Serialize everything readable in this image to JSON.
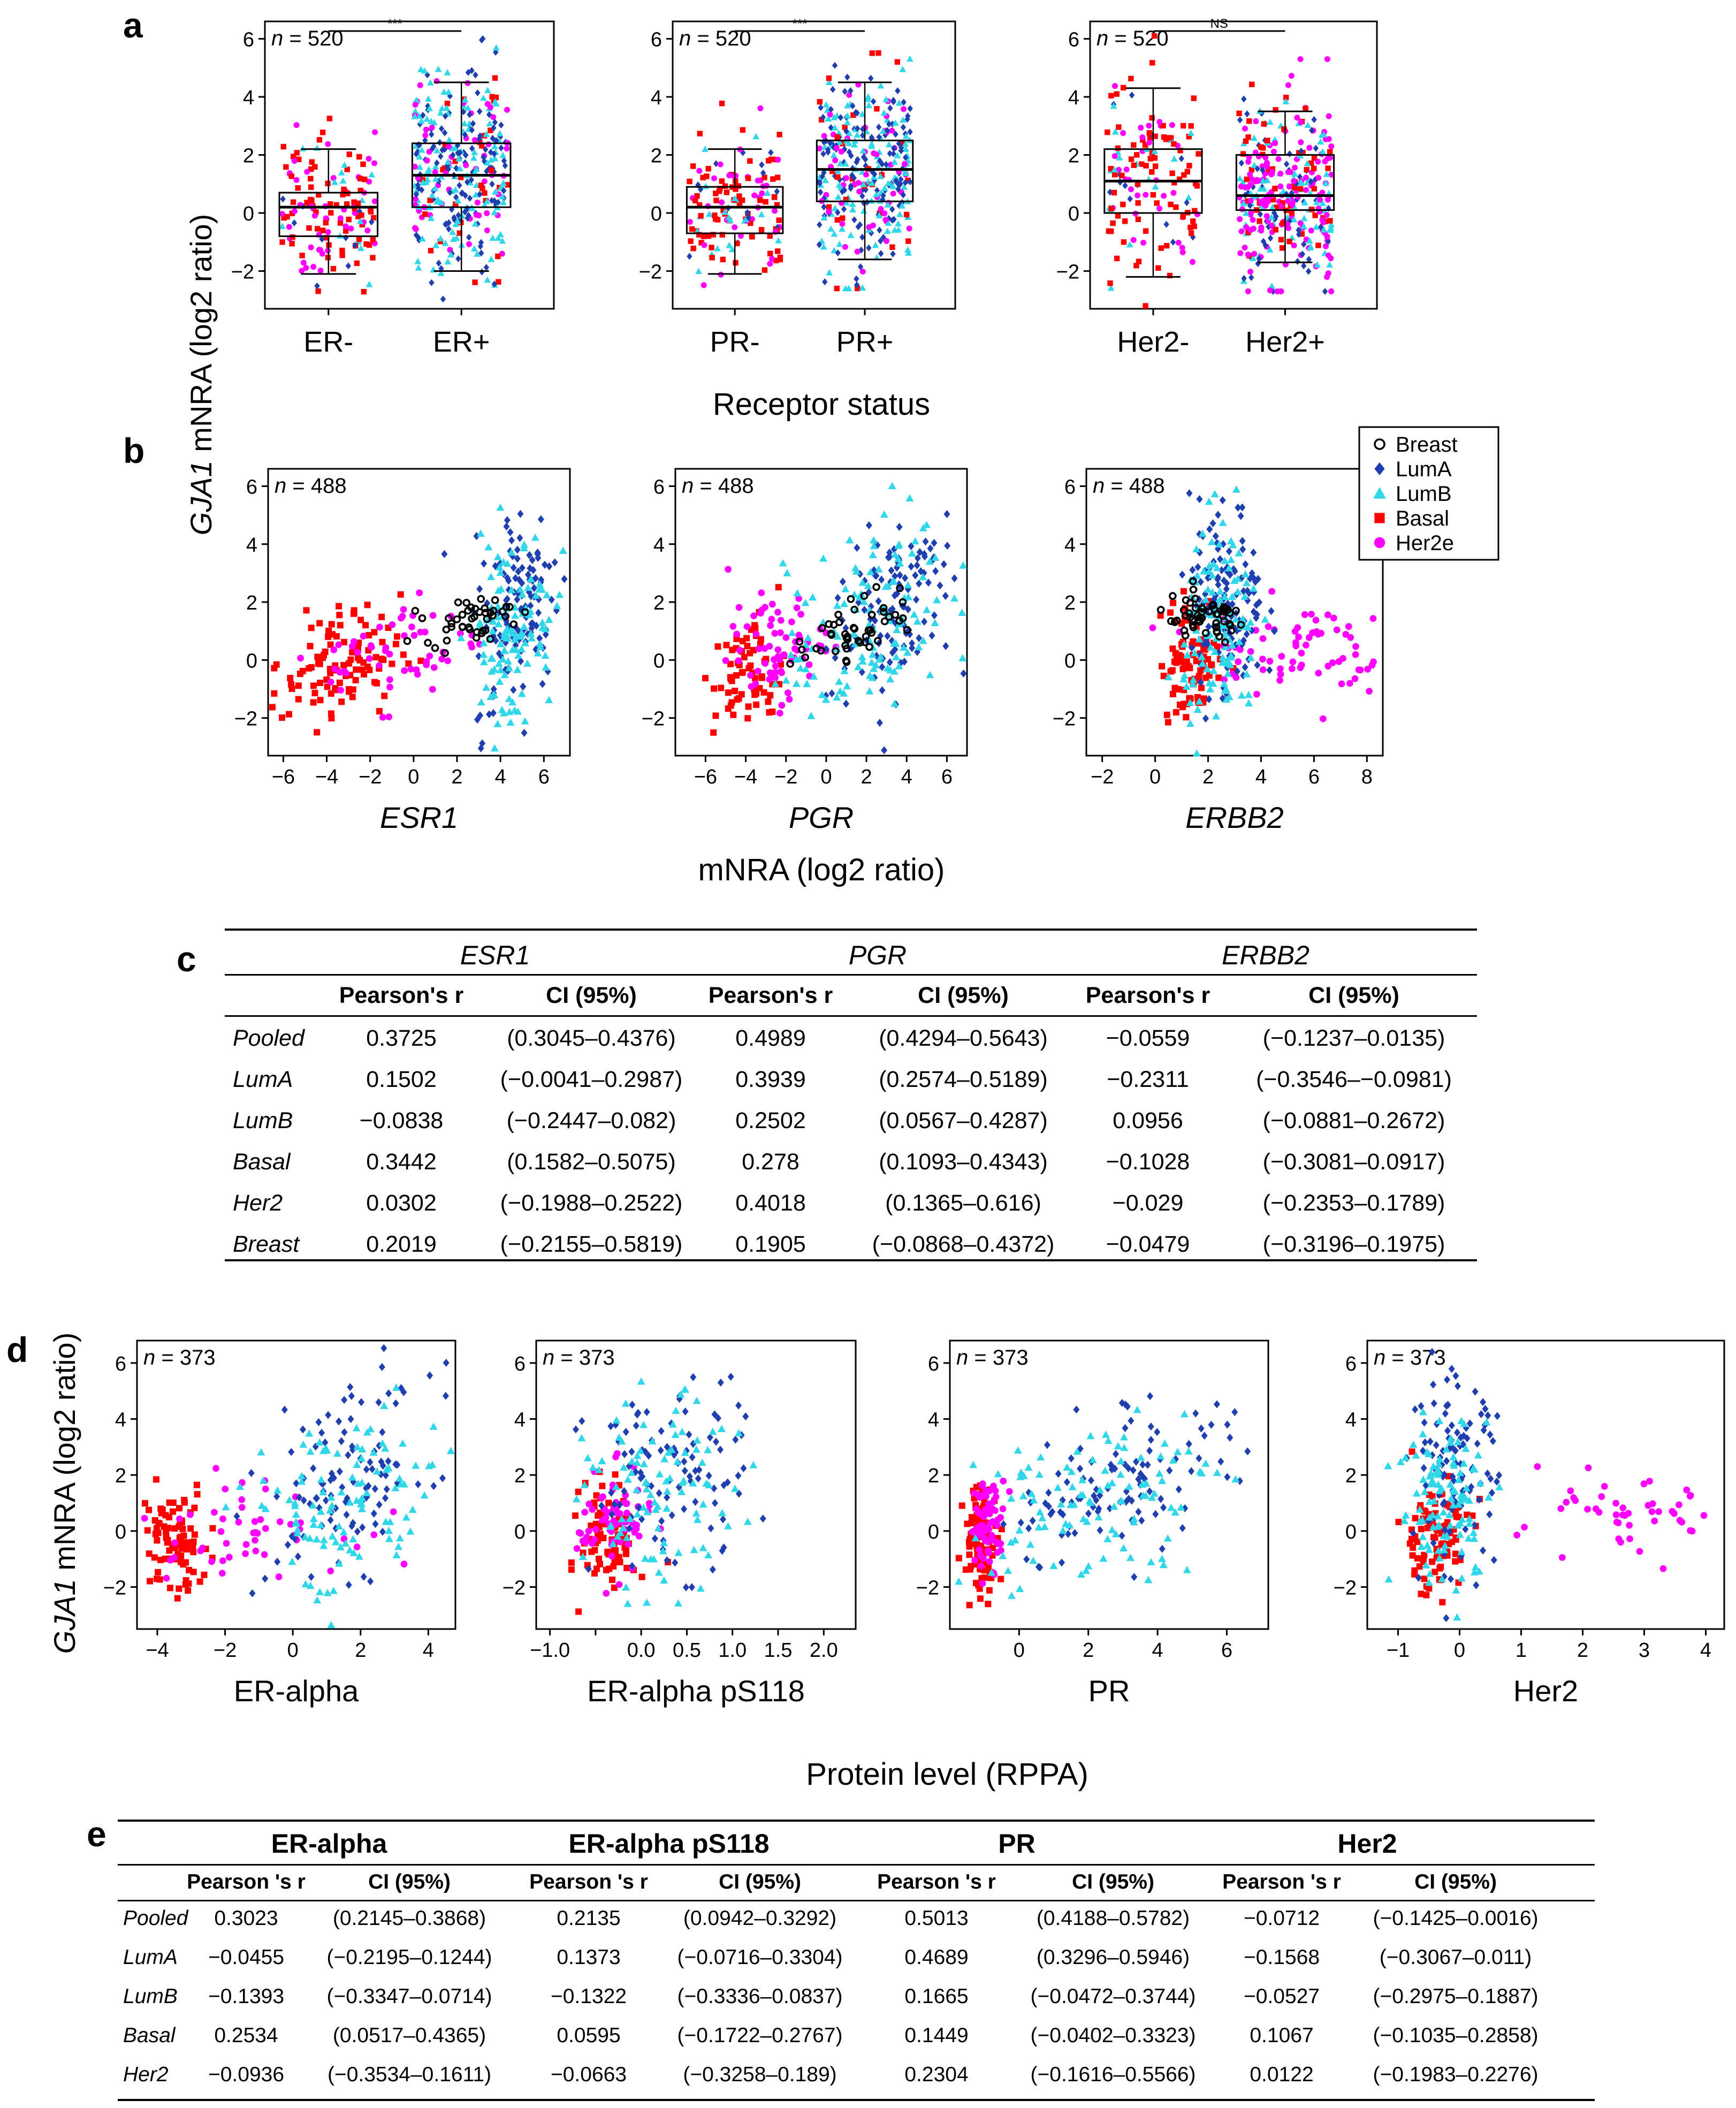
{
  "panel_labels": {
    "a": "a",
    "b": "b",
    "c": "c",
    "d": "d",
    "e": "e"
  },
  "colors": {
    "breast": "#000000",
    "luma": "#1f3fb0",
    "lumb": "#2fd7e8",
    "basal": "#ff0000",
    "her2e": "#ff00ff"
  },
  "axis_titles": {
    "y_gene": "GJA1",
    "y_rest": " mNRA (log2 ratio)",
    "a_x": "Receptor status",
    "b_x": "mNRA (log2 ratio)",
    "d_x": "Protein level (RPPA)"
  },
  "legend": [
    {
      "label": "Breast",
      "shape": "open-circle",
      "color": "#000000"
    },
    {
      "label": "LumA",
      "shape": "diamond",
      "color": "#1f3fb0"
    },
    {
      "label": "LumB",
      "shape": "triangle",
      "color": "#2fd7e8"
    },
    {
      "label": "Basal",
      "shape": "square",
      "color": "#ff0000"
    },
    {
      "label": "Her2e",
      "shape": "circle",
      "color": "#ff00ff"
    }
  ],
  "n_labels": {
    "a": "n = 520",
    "b": "n = 488",
    "d": "n = 373"
  },
  "chart_data": [
    {
      "id": "a1",
      "type": "box",
      "title": "",
      "ylabel": "GJA1 mNRA (log2 ratio)",
      "ylim": [
        -3.3,
        6.6
      ],
      "yticks": [
        -2,
        0,
        2,
        4,
        6
      ],
      "categories": [
        "ER-",
        "ER+"
      ],
      "significance": "***",
      "n": "n = 520",
      "boxes": [
        {
          "q1": -0.8,
          "median": 0.2,
          "q3": 0.7,
          "low": -2.1,
          "high": 2.2
        },
        {
          "q1": 0.2,
          "median": 1.3,
          "q3": 2.4,
          "low": -2.0,
          "high": 4.5
        }
      ]
    },
    {
      "id": "a2",
      "type": "box",
      "title": "",
      "ylabel": "GJA1 mNRA (log2 ratio)",
      "ylim": [
        -3.3,
        6.6
      ],
      "yticks": [
        -2,
        0,
        2,
        4,
        6
      ],
      "categories": [
        "PR-",
        "PR+"
      ],
      "significance": "***",
      "n": "n = 520",
      "boxes": [
        {
          "q1": -0.7,
          "median": 0.2,
          "q3": 0.9,
          "low": -2.1,
          "high": 2.2
        },
        {
          "q1": 0.4,
          "median": 1.5,
          "q3": 2.5,
          "low": -1.6,
          "high": 4.5
        }
      ]
    },
    {
      "id": "a3",
      "type": "box",
      "title": "",
      "ylabel": "GJA1 mNRA (log2 ratio)",
      "ylim": [
        -3.3,
        6.6
      ],
      "yticks": [
        -2,
        0,
        2,
        4,
        6
      ],
      "categories": [
        "Her2-",
        "Her2+"
      ],
      "significance": "NS",
      "n": "n = 520",
      "boxes": [
        {
          "q1": 0.0,
          "median": 1.1,
          "q3": 2.2,
          "low": -2.2,
          "high": 4.3
        },
        {
          "q1": 0.1,
          "median": 0.6,
          "q3": 2.0,
          "low": -1.7,
          "high": 3.5
        }
      ]
    },
    {
      "id": "b1",
      "type": "scatter",
      "xlabel": "ESR1",
      "ylabel": "GJA1 mNRA (log2 ratio)",
      "xlim": [
        -6.7,
        7.2
      ],
      "ylim": [
        -3.3,
        6.6
      ],
      "xticks": [
        -6,
        -4,
        -2,
        0,
        2,
        4,
        6
      ],
      "yticks": [
        -2,
        0,
        2,
        4,
        6
      ],
      "n": "n = 488"
    },
    {
      "id": "b2",
      "type": "scatter",
      "xlabel": "PGR",
      "ylabel": "GJA1 mNRA (log2 ratio)",
      "xlim": [
        -7.5,
        7.0
      ],
      "ylim": [
        -3.3,
        6.6
      ],
      "xticks": [
        -6,
        -4,
        -2,
        0,
        2,
        4,
        6
      ],
      "yticks": [
        -2,
        0,
        2,
        4,
        6
      ],
      "n": "n = 488"
    },
    {
      "id": "b3",
      "type": "scatter",
      "xlabel": "ERBB2",
      "ylabel": "GJA1 mNRA (log2 ratio)",
      "xlim": [
        -2.6,
        8.6
      ],
      "ylim": [
        -3.3,
        6.6
      ],
      "xticks": [
        -2,
        0,
        2,
        4,
        6,
        8
      ],
      "yticks": [
        -2,
        0,
        2,
        4,
        6
      ],
      "n": "n = 488"
    },
    {
      "id": "d1",
      "type": "scatter",
      "xlabel": "ER-alpha",
      "ylabel": "GJA1 mNRA (log2 ratio)",
      "xlim": [
        -4.6,
        4.8
      ],
      "ylim": [
        -3.5,
        6.8
      ],
      "xticks": [
        -4,
        -2,
        0,
        2,
        4
      ],
      "yticks": [
        -2,
        0,
        2,
        4,
        6
      ],
      "n": "n = 373"
    },
    {
      "id": "d2",
      "type": "scatter",
      "xlabel": "ER-alpha pS118",
      "ylabel": "GJA1 mNRA (log2 ratio)",
      "xlim": [
        -1.15,
        2.35
      ],
      "ylim": [
        -3.5,
        6.8
      ],
      "xticks": [
        -1.0,
        -0.5,
        0.0,
        0.5,
        1.0,
        1.5,
        2.0
      ],
      "xticklabels": [
        "-1.0",
        "",
        "0.0",
        "0.5",
        "1.0",
        "1.5",
        "2.0"
      ],
      "yticks": [
        -2,
        0,
        2,
        4,
        6
      ],
      "n": "n = 373"
    },
    {
      "id": "d3",
      "type": "scatter",
      "xlabel": "PR",
      "ylabel": "GJA1 mNRA (log2 ratio)",
      "xlim": [
        -2.0,
        7.2
      ],
      "ylim": [
        -3.5,
        6.8
      ],
      "xticks": [
        0,
        2,
        4,
        6
      ],
      "yticks": [
        -2,
        0,
        2,
        4,
        6
      ],
      "n": "n = 373"
    },
    {
      "id": "d4",
      "type": "scatter",
      "xlabel": "Her2",
      "ylabel": "GJA1 mNRA (log2 ratio)",
      "xlim": [
        -1.5,
        4.3
      ],
      "ylim": [
        -3.5,
        6.8
      ],
      "xticks": [
        -1,
        0,
        1,
        2,
        3,
        4
      ],
      "yticks": [
        -2,
        0,
        2,
        4,
        6
      ],
      "n": "n = 373"
    }
  ],
  "table_c": {
    "groups": [
      "ESR1",
      "PGR",
      "ERBB2"
    ],
    "columns": [
      "Pearson's r",
      "CI (95%)",
      "Pearson's r",
      "CI (95%)",
      "Pearson's r",
      "CI (95%)"
    ],
    "rows": [
      {
        "label": "Pooled",
        "cells": [
          "0.3725",
          "(0.3045–0.4376)",
          "0.4989",
          "(0.4294–0.5643)",
          "−0.0559",
          "(−0.1237–0.0135)"
        ]
      },
      {
        "label": "LumA",
        "cells": [
          "0.1502",
          "(−0.0041–0.2987)",
          "0.3939",
          "(0.2574–0.5189)",
          "−0.2311",
          "(−0.3546–−0.0981)"
        ]
      },
      {
        "label": "LumB",
        "cells": [
          "−0.0838",
          "(−0.2447–0.082)",
          "0.2502",
          "(0.0567–0.4287)",
          "0.0956",
          "(−0.0881–0.2672)"
        ]
      },
      {
        "label": "Basal",
        "cells": [
          "0.3442",
          "(0.1582–0.5075)",
          "0.278",
          "(0.1093–0.4343)",
          "−0.1028",
          "(−0.3081–0.0917)"
        ]
      },
      {
        "label": "Her2",
        "cells": [
          "0.0302",
          "(−0.1988–0.2522)",
          "0.4018",
          "(0.1365–0.616)",
          "−0.029",
          "(−0.2353–0.1789)"
        ]
      },
      {
        "label": "Breast",
        "cells": [
          "0.2019",
          "(−0.2155–0.5819)",
          "0.1905",
          "(−0.0868–0.4372)",
          "−0.0479",
          "(−0.3196–0.1975)"
        ]
      }
    ]
  },
  "table_e": {
    "groups": [
      "ER-alpha",
      "ER-alpha pS118",
      "PR",
      "Her2"
    ],
    "columns": [
      "Pearson 's r",
      "CI (95%)",
      "Pearson 's r",
      "CI (95%)",
      "Pearson 's r",
      "CI (95%)",
      "Pearson 's r",
      "CI (95%)"
    ],
    "rows": [
      {
        "label": "Pooled",
        "cells": [
          "0.3023",
          "(0.2145–0.3868)",
          "0.2135",
          "(0.0942–0.3292)",
          "0.5013",
          "(0.4188–0.5782)",
          "−0.0712",
          "(−0.1425–0.0016)"
        ]
      },
      {
        "label": "LumA",
        "cells": [
          "−0.0455",
          "(−0.2195–0.1244)",
          "0.1373",
          "(−0.0716–0.3304)",
          "0.4689",
          "(0.3296–0.5946)",
          "−0.1568",
          "(−0.3067–0.011)"
        ]
      },
      {
        "label": "LumB",
        "cells": [
          "−0.1393",
          "(−0.3347–0.0714)",
          "−0.1322",
          "(−0.3336–0.0837)",
          "0.1665",
          "(−0.0472–0.3744)",
          "−0.0527",
          "(−0.2975–0.1887)"
        ]
      },
      {
        "label": "Basal",
        "cells": [
          "0.2534",
          "(0.0517–0.4365)",
          "0.0595",
          "(−0.1722–0.2767)",
          "0.1449",
          "(−0.0402–0.3323)",
          "0.1067",
          "(−0.1035–0.2858)"
        ]
      },
      {
        "label": "Her2",
        "cells": [
          "−0.0936",
          "(−0.3534–0.1611)",
          "−0.0663",
          "(−0.3258–0.189)",
          "0.2304",
          "(−0.1616–0.5566)",
          "0.0122",
          "(−0.1983–0.2276)"
        ]
      }
    ]
  }
}
